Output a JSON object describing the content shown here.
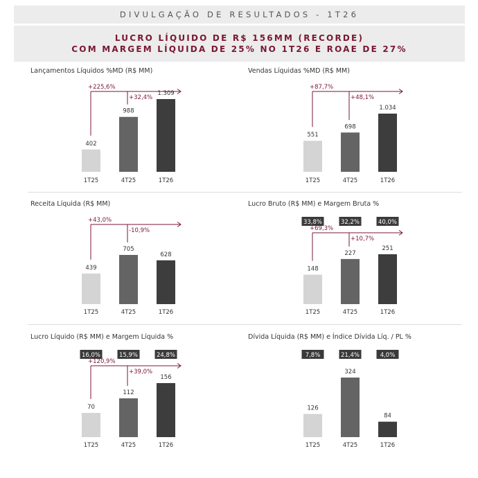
{
  "header": {
    "title": "DIVULGAÇÃO DE RESULTADOS  - 1T26"
  },
  "headline": {
    "line1": "LUCRO LÍQUIDO DE R$ 156MM (RECORDE)",
    "line2": "COM MARGEM LÍQUIDA DE 25% NO 1T26 E ROAE DE 27%"
  },
  "colors": {
    "bar_1T25": "#d4d4d4",
    "bar_4T25": "#646464",
    "bar_1T26": "#3d3d3d",
    "accent": "#7a1733",
    "badge_bg": "#3a3a3a"
  },
  "chart_data": [
    {
      "type": "bar",
      "title": "Lançamentos Líquidos %MD (R$ MM)",
      "categories": [
        "1T25",
        "4T25",
        "1T26"
      ],
      "values": [
        402,
        988,
        1309
      ],
      "value_labels": [
        "402",
        "988",
        "1.309"
      ],
      "badges": [],
      "growth": [
        {
          "label": "+225,6%",
          "from": "1T25",
          "to": "1T26"
        },
        {
          "label": "+32,4%",
          "from": "4T25",
          "to": "1T26"
        }
      ]
    },
    {
      "type": "bar",
      "title": "Vendas Líquidas %MD (R$ MM)",
      "categories": [
        "1T25",
        "4T25",
        "1T26"
      ],
      "values": [
        551,
        698,
        1034
      ],
      "value_labels": [
        "551",
        "698",
        "1.034"
      ],
      "badges": [],
      "growth": [
        {
          "label": "+87,7%",
          "from": "1T25",
          "to": "1T26"
        },
        {
          "label": "+48,1%",
          "from": "4T25",
          "to": "1T26"
        }
      ]
    },
    {
      "type": "bar",
      "title": "Receita Líquida (R$ MM)",
      "categories": [
        "1T25",
        "4T25",
        "1T26"
      ],
      "values": [
        439,
        705,
        628
      ],
      "value_labels": [
        "439",
        "705",
        "628"
      ],
      "badges": [],
      "growth": [
        {
          "label": "+43,0%",
          "from": "1T25",
          "to": "1T26"
        },
        {
          "label": "-10,9%",
          "from": "4T25",
          "to": "1T26"
        }
      ]
    },
    {
      "type": "bar",
      "title": "Lucro Bruto (R$ MM) e Margem Bruta %",
      "categories": [
        "1T25",
        "4T25",
        "1T26"
      ],
      "values": [
        148,
        227,
        251
      ],
      "value_labels": [
        "148",
        "227",
        "251"
      ],
      "badges": [
        "33,8%",
        "32,2%",
        "40,0%"
      ],
      "growth": [
        {
          "label": "+69,3%",
          "from": "1T25",
          "to": "1T26"
        },
        {
          "label": "+10,7%",
          "from": "4T25",
          "to": "1T26"
        }
      ]
    },
    {
      "type": "bar",
      "title": "Lucro Líquido (R$ MM) e Margem Líquida %",
      "categories": [
        "1T25",
        "4T25",
        "1T26"
      ],
      "values": [
        70,
        112,
        156
      ],
      "value_labels": [
        "70",
        "112",
        "156"
      ],
      "badges": [
        "16,0%",
        "15,9%",
        "24,8%"
      ],
      "growth": [
        {
          "label": "+120,9%",
          "from": "1T25",
          "to": "1T26"
        },
        {
          "label": "+39,0%",
          "from": "4T25",
          "to": "1T26"
        }
      ]
    },
    {
      "type": "bar",
      "title": "Dívida Líquida (R$ MM) e Índice Dívida Líq. / PL %",
      "categories": [
        "1T25",
        "4T25",
        "1T26"
      ],
      "values": [
        126,
        324,
        84
      ],
      "value_labels": [
        "126",
        "324",
        "84"
      ],
      "badges": [
        "7,8%",
        "21,4%",
        "4,0%"
      ],
      "growth": []
    }
  ]
}
